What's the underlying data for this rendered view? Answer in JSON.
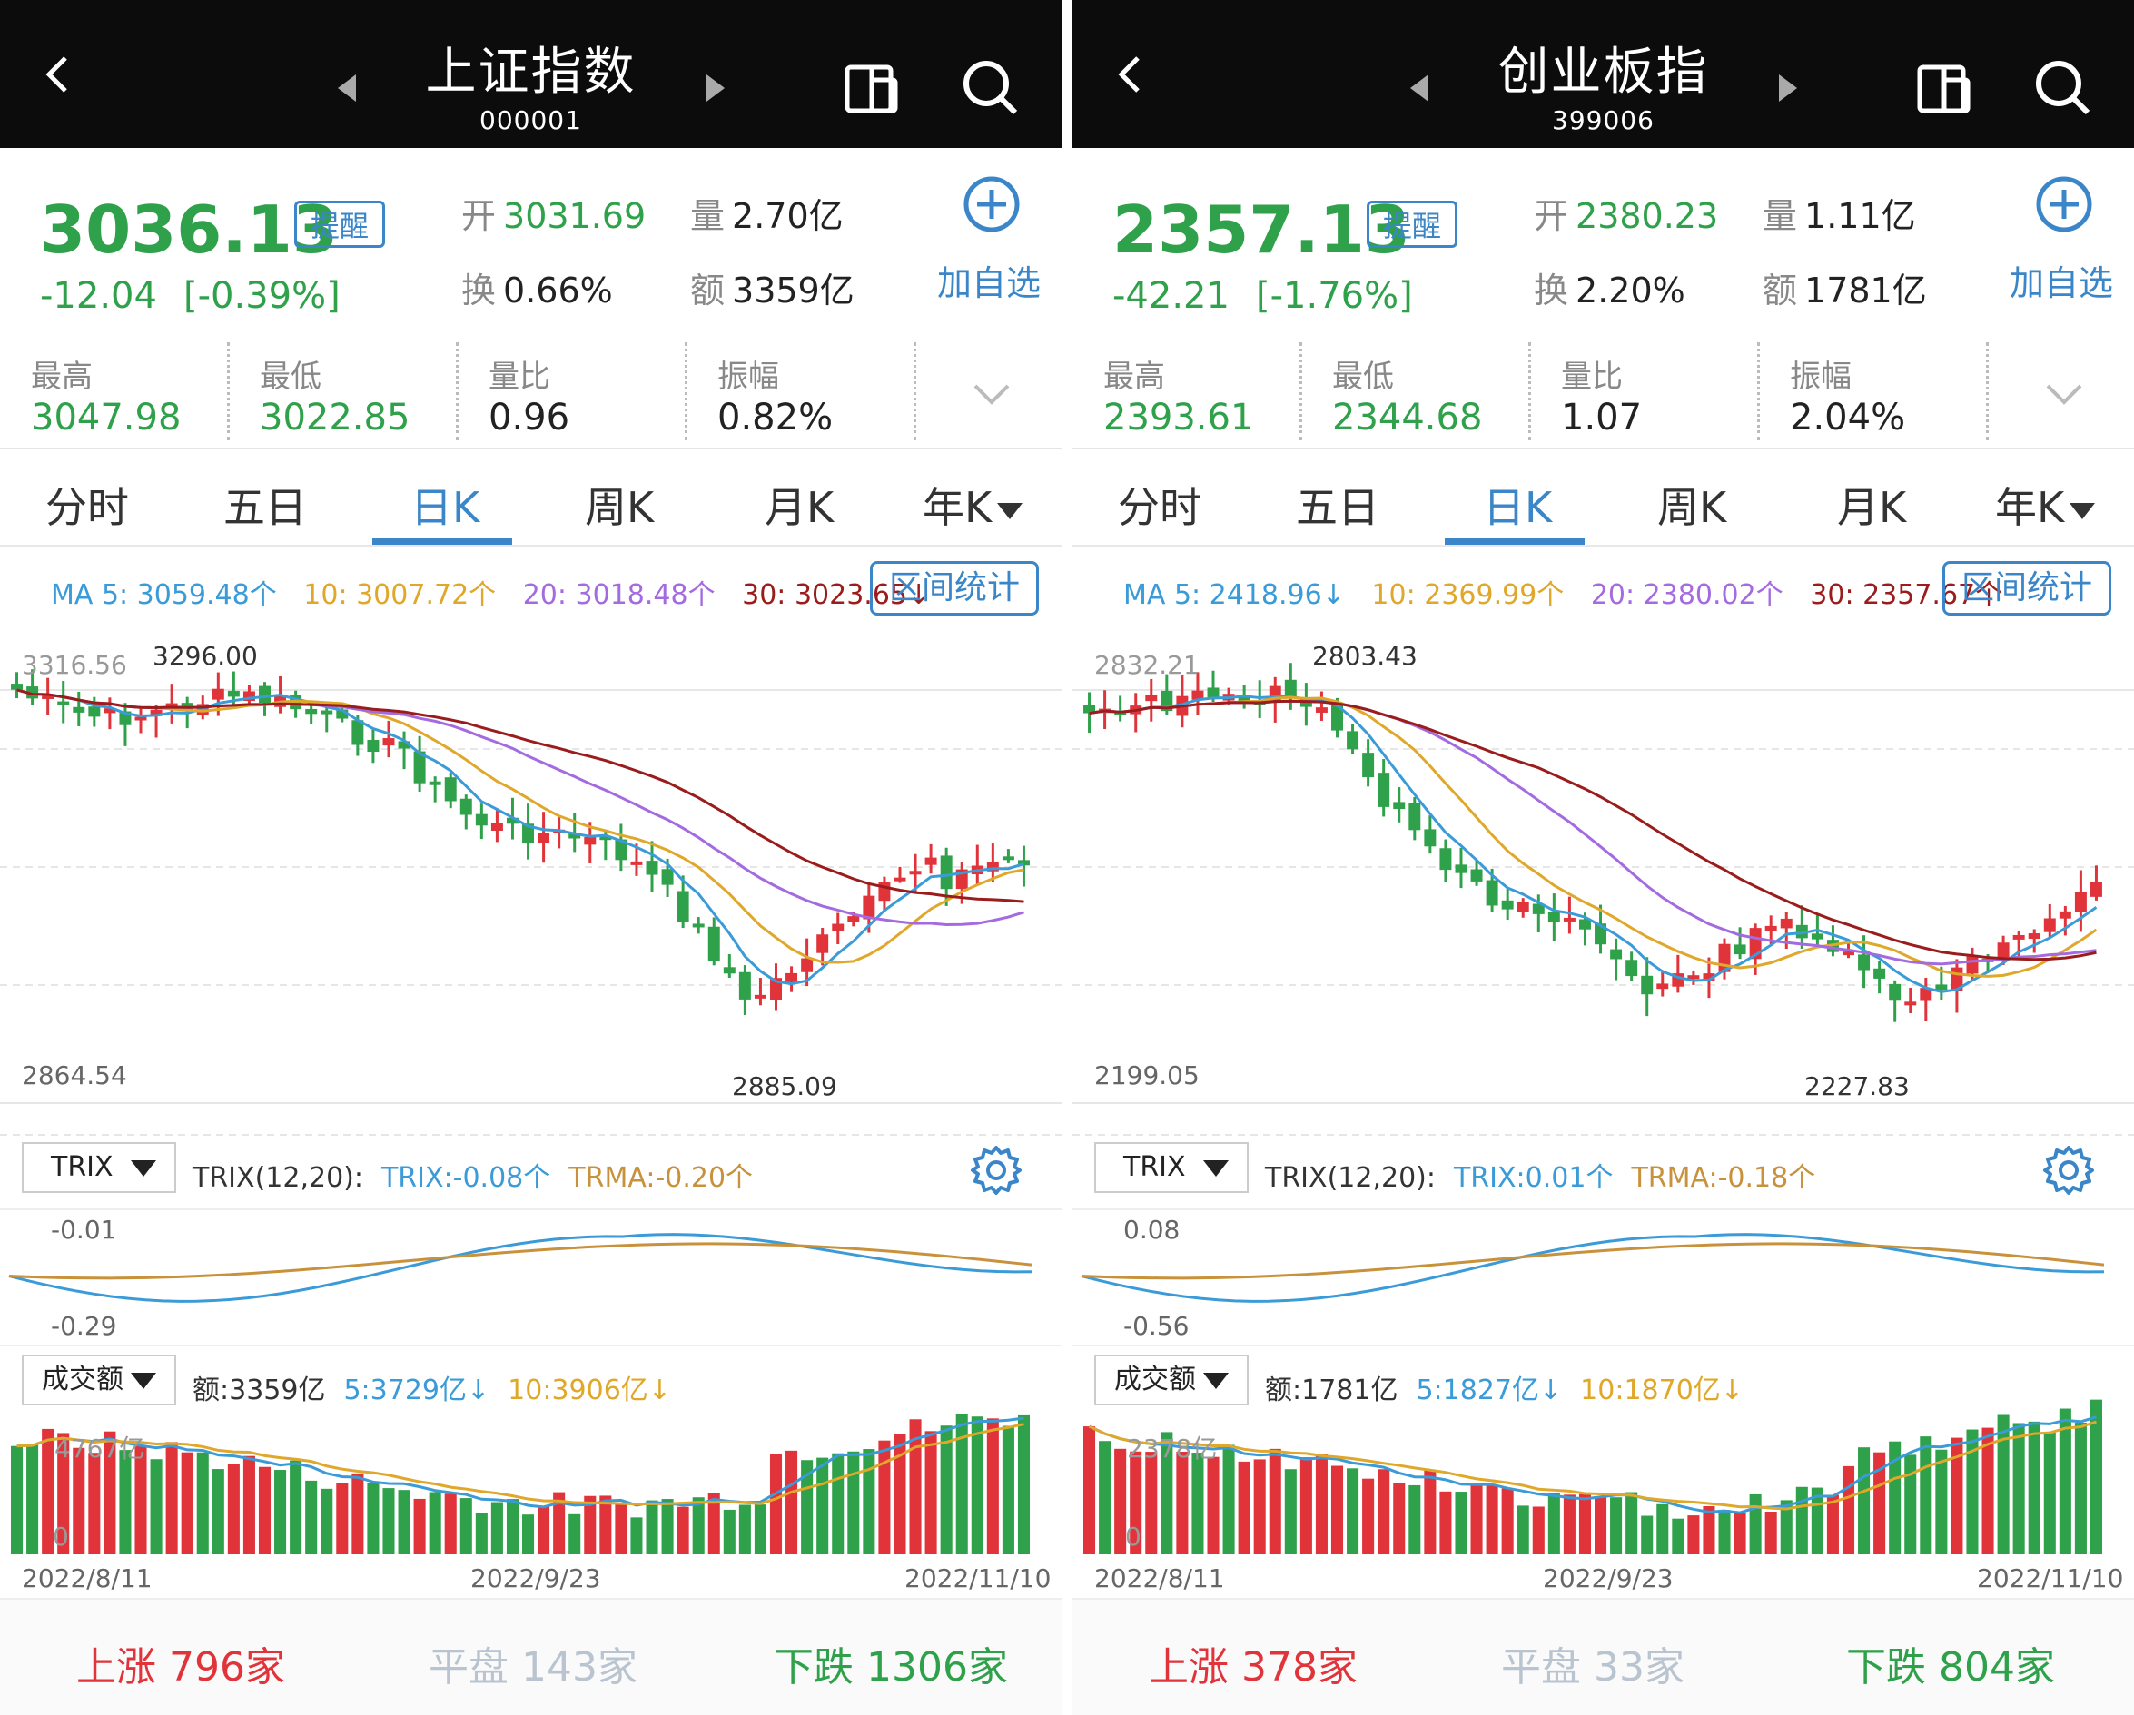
{
  "panels": [
    {
      "title": "上证指数",
      "code": "000001",
      "price": "3036.13",
      "remind_label": "提醒",
      "change": "-12.04",
      "change_pct": "[-0.39%]",
      "open_label": "开",
      "open": "3031.69",
      "volume_label": "量",
      "volume": "2.70亿",
      "turnover_label": "换",
      "turnover": "0.66%",
      "amount_label": "额",
      "amount": "3359亿",
      "add_label": "加自选",
      "stats": [
        {
          "label": "最高",
          "value": "3047.98",
          "color": "#2fa14a"
        },
        {
          "label": "最低",
          "value": "3022.85",
          "color": "#2fa14a"
        },
        {
          "label": "量比",
          "value": "0.96",
          "color": "#222"
        },
        {
          "label": "振幅",
          "value": "0.82%",
          "color": "#222"
        }
      ],
      "tabs": [
        "分时",
        "五日",
        "日K",
        "周K",
        "月K",
        "年K"
      ],
      "active_tab": "日K",
      "ma": {
        "ma5": "MA 5: 3059.48个",
        "ma10": "10: 3007.72个",
        "ma20": "20: 3018.48个",
        "ma30": "30: 3023.65↓"
      },
      "range_btn": "区间统计",
      "kline_high_label": "3296.00",
      "kline_top_axis": "3316.56",
      "kline_bottom_axis": "2864.54",
      "kline_low_label": "2885.09",
      "trix_dropdown": "TRIX",
      "trix_name": "TRIX(12,20):",
      "trix_val": "TRIX:-0.08个",
      "trma_val": "TRMA:-0.20个",
      "trix_top": "-0.01",
      "trix_bottom": "-0.29",
      "amt_dropdown": "成交额",
      "amt_val": "额:3359亿",
      "amt_5": "5:3729亿↓",
      "amt_10": "10:3906亿↓",
      "amt_top": "4767亿",
      "amt_zero": "0",
      "dates": [
        "2022/8/11",
        "2022/9/23",
        "2022/11/10"
      ],
      "up_label": "上涨",
      "up_count": "796家",
      "flat_label": "平盘",
      "flat_count": "143家",
      "down_label": "下跌",
      "down_count": "1306家"
    },
    {
      "title": "创业板指",
      "code": "399006",
      "price": "2357.13",
      "remind_label": "提醒",
      "change": "-42.21",
      "change_pct": "[-1.76%]",
      "open_label": "开",
      "open": "2380.23",
      "volume_label": "量",
      "volume": "1.11亿",
      "turnover_label": "换",
      "turnover": "2.20%",
      "amount_label": "额",
      "amount": "1781亿",
      "add_label": "加自选",
      "stats": [
        {
          "label": "最高",
          "value": "2393.61",
          "color": "#2fa14a"
        },
        {
          "label": "最低",
          "value": "2344.68",
          "color": "#2fa14a"
        },
        {
          "label": "量比",
          "value": "1.07",
          "color": "#222"
        },
        {
          "label": "振幅",
          "value": "2.04%",
          "color": "#222"
        }
      ],
      "tabs": [
        "分时",
        "五日",
        "日K",
        "周K",
        "月K",
        "年K"
      ],
      "active_tab": "日K",
      "ma": {
        "ma5": "MA 5: 2418.96↓",
        "ma10": "10: 2369.99个",
        "ma20": "20: 2380.02个",
        "ma30": "30: 2357.67个"
      },
      "range_btn": "区间统计",
      "kline_high_label": "2803.43",
      "kline_top_axis": "2832.21",
      "kline_bottom_axis": "2199.05",
      "kline_low_label": "2227.83",
      "trix_dropdown": "TRIX",
      "trix_name": "TRIX(12,20):",
      "trix_val": "TRIX:0.01个",
      "trma_val": "TRMA:-0.18个",
      "trix_top": "0.08",
      "trix_bottom": "-0.56",
      "amt_dropdown": "成交额",
      "amt_val": "额:1781亿",
      "amt_5": "5:1827亿↓",
      "amt_10": "10:1870亿↓",
      "amt_top": "2378亿",
      "amt_zero": "0",
      "dates": [
        "2022/8/11",
        "2022/9/23",
        "2022/11/10"
      ],
      "up_label": "上涨",
      "up_count": "378家",
      "flat_label": "平盘",
      "flat_count": "33家",
      "down_label": "下跌",
      "down_count": "804家"
    }
  ],
  "colors": {
    "up": "#e0343a",
    "down": "#2fa14a",
    "accent": "#3a86c8",
    "ma5": "#3a9bd8",
    "ma10": "#e0a82a",
    "ma20": "#a46be0",
    "ma30": "#9b1c1c",
    "trix": "#3a9bd8",
    "trma": "#c8913c"
  },
  "icons": [
    "back-icon",
    "prev-triangle-icon",
    "next-triangle-icon",
    "split-screen-icon",
    "search-icon",
    "add-circle-icon",
    "chevron-down-icon",
    "gear-icon"
  ]
}
